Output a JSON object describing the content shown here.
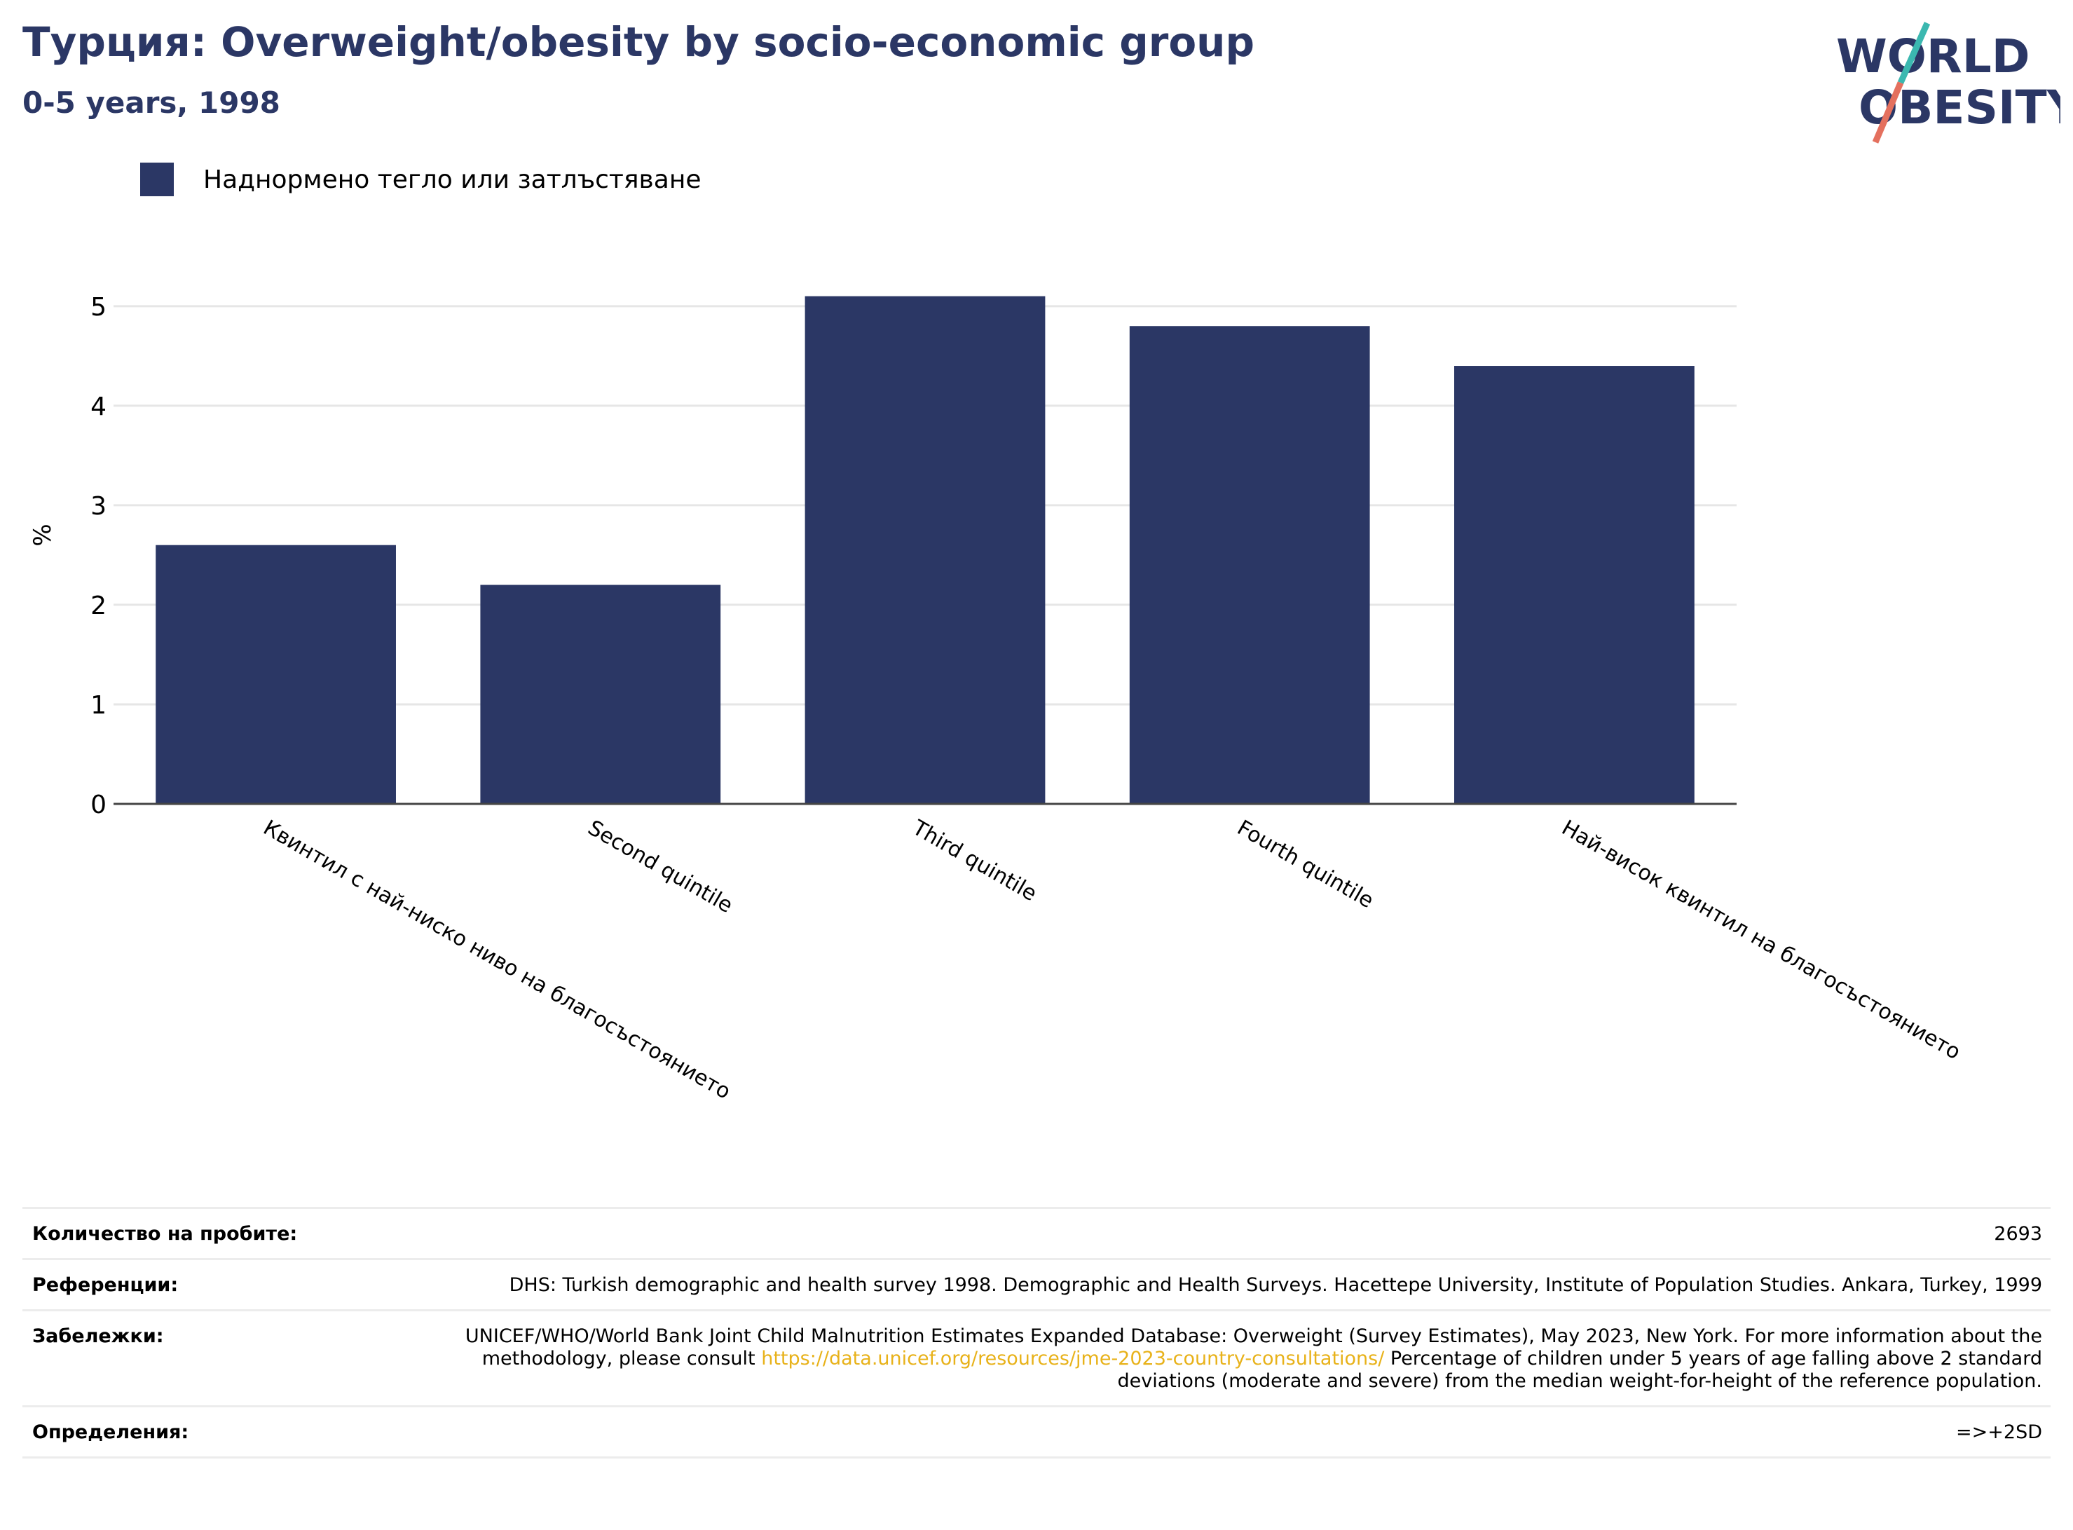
{
  "header": {
    "title": "Турция: Overweight/obesity by socio-economic group",
    "subtitle": "0-5 years, 1998",
    "logo_line1": "WORLD",
    "logo_line2": "OBESITY"
  },
  "legend": {
    "label": "Наднормено тегло или затлъстяване",
    "color": "#2b3765"
  },
  "chart_data": {
    "type": "bar",
    "categories": [
      "Квинтил с най-ниско ниво на благосъстоянието",
      "Second quintile",
      "Third quintile",
      "Fourth quintile",
      "Най-висок квинтил на благосъстоянието"
    ],
    "series": [
      {
        "name": "Наднормено тегло или затлъстяване",
        "values": [
          2.6,
          2.2,
          5.1,
          4.8,
          4.4
        ]
      }
    ],
    "ylabel": "%",
    "ylim": [
      0,
      5.4
    ],
    "yticks": [
      0,
      1,
      2,
      3,
      4,
      5
    ],
    "grid": true,
    "legend_position": "top-left",
    "bar_color": "#2b3765"
  },
  "footer": {
    "rows": [
      {
        "label": "Количество на пробите:",
        "value": "2693"
      },
      {
        "label": "Референции:",
        "value": "DHS: Turkish demographic and health survey 1998. Demographic and Health Surveys. Hacettepe University, Institute of Population Studies. Ankara, Turkey, 1999"
      },
      {
        "label": "Забележки:",
        "value_before": "UNICEF/WHO/World Bank Joint Child Malnutrition Estimates Expanded Database: Overweight (Survey Estimates), May 2023, New York. For more information about the methodology, please consult ",
        "link": "https://data.unicef.org/resources/jme-2023-country-consultations/",
        "value_after": " Percentage of children under 5 years of age falling above 2 standard deviations (moderate and severe) from the median weight-for-height of the reference population."
      },
      {
        "label": "Определения:",
        "value": "=>+2SD"
      }
    ]
  }
}
